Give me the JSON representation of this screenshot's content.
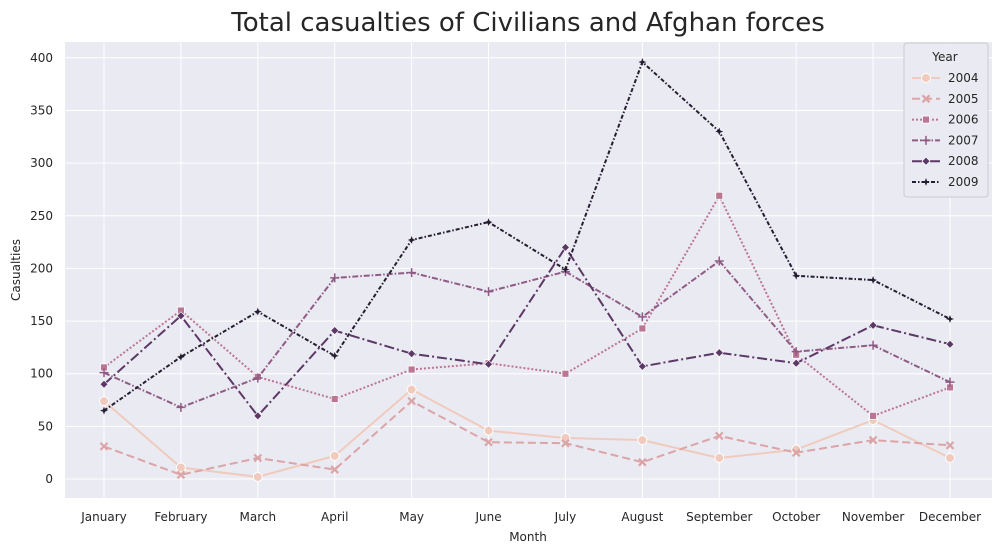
{
  "chart_data": {
    "type": "line",
    "title": "Total casualties of Civilians and Afghan forces",
    "xlabel": "Month",
    "ylabel": "Casualties",
    "categories": [
      "January",
      "February",
      "March",
      "April",
      "May",
      "June",
      "July",
      "August",
      "September",
      "October",
      "November",
      "December"
    ],
    "ylim": [
      -18,
      415
    ],
    "yticks": [
      0,
      50,
      100,
      150,
      200,
      250,
      300,
      350,
      400
    ],
    "grid": true,
    "legend": {
      "title": "Year",
      "placement": "top-right"
    },
    "series": [
      {
        "name": "2004",
        "color": "#f0cbbd",
        "dash": "",
        "marker": "circle",
        "values": [
          74,
          11,
          2,
          22,
          85,
          46,
          39,
          37,
          20,
          28,
          56,
          20
        ]
      },
      {
        "name": "2005",
        "color": "#dba4a6",
        "dash": "8,4",
        "marker": "x",
        "values": [
          31,
          4,
          20,
          9,
          74,
          35,
          34,
          16,
          41,
          25,
          37,
          32
        ]
      },
      {
        "name": "2006",
        "color": "#bb7694",
        "dash": "2,2",
        "marker": "square",
        "values": [
          106,
          160,
          97,
          76,
          104,
          110,
          100,
          143,
          269,
          118,
          60,
          87
        ]
      },
      {
        "name": "2007",
        "color": "#8f5b85",
        "dash": "6,2,1.5,2",
        "marker": "plus",
        "values": [
          101,
          68,
          96,
          191,
          196,
          178,
          197,
          154,
          207,
          121,
          127,
          92
        ]
      },
      {
        "name": "2008",
        "color": "#5b3865",
        "dash": "10,3,2,3",
        "marker": "diamond",
        "values": [
          90,
          155,
          60,
          141,
          119,
          109,
          220,
          107,
          120,
          110,
          146,
          128
        ]
      },
      {
        "name": "2009",
        "color": "#241c30",
        "dash": "4,2,1.5,2",
        "marker": "star",
        "values": [
          65,
          116,
          159,
          117,
          227,
          244,
          199,
          396,
          330,
          193,
          189,
          152
        ]
      }
    ]
  }
}
